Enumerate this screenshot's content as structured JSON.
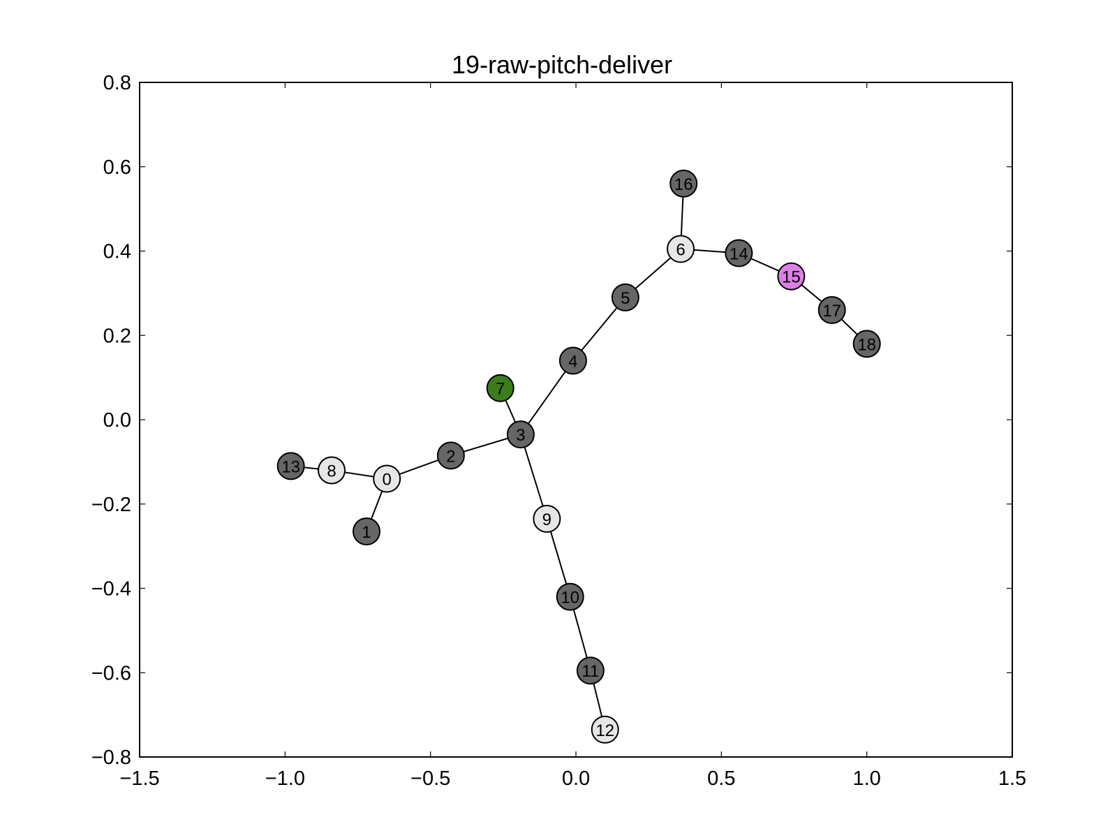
{
  "chart_data": {
    "type": "network",
    "title": "19-raw-pitch-deliver",
    "xlabel": "",
    "ylabel": "",
    "xlim": [
      -1.5,
      1.5
    ],
    "ylim": [
      -0.8,
      0.8
    ],
    "x_ticks": [
      -1.5,
      -1.0,
      -0.5,
      0.0,
      0.5,
      1.0,
      1.5
    ],
    "x_tick_labels": [
      "−1.5",
      "−1.0",
      "−0.5",
      "0.0",
      "0.5",
      "1.0",
      "1.5"
    ],
    "y_ticks": [
      -0.8,
      -0.6,
      -0.4,
      -0.2,
      0.0,
      0.2,
      0.4,
      0.6,
      0.8
    ],
    "y_tick_labels": [
      "−0.8",
      "−0.6",
      "−0.4",
      "−0.2",
      "0.0",
      "0.2",
      "0.4",
      "0.6",
      "0.8"
    ],
    "grid": false,
    "colors": {
      "dark": "#666666",
      "light": "#e6e6e6",
      "green": "#3a7d1a",
      "pink": "#dc7fe6"
    },
    "nodes": [
      {
        "id": "0",
        "x": -0.65,
        "y": -0.14,
        "color": "light"
      },
      {
        "id": "1",
        "x": -0.72,
        "y": -0.265,
        "color": "dark"
      },
      {
        "id": "2",
        "x": -0.43,
        "y": -0.085,
        "color": "dark"
      },
      {
        "id": "3",
        "x": -0.19,
        "y": -0.035,
        "color": "dark"
      },
      {
        "id": "4",
        "x": -0.01,
        "y": 0.14,
        "color": "dark"
      },
      {
        "id": "5",
        "x": 0.17,
        "y": 0.29,
        "color": "dark"
      },
      {
        "id": "6",
        "x": 0.36,
        "y": 0.405,
        "color": "light"
      },
      {
        "id": "7",
        "x": -0.26,
        "y": 0.075,
        "color": "green"
      },
      {
        "id": "8",
        "x": -0.84,
        "y": -0.12,
        "color": "light"
      },
      {
        "id": "9",
        "x": -0.1,
        "y": -0.235,
        "color": "light"
      },
      {
        "id": "10",
        "x": -0.02,
        "y": -0.42,
        "color": "dark"
      },
      {
        "id": "11",
        "x": 0.05,
        "y": -0.595,
        "color": "dark"
      },
      {
        "id": "12",
        "x": 0.1,
        "y": -0.735,
        "color": "light"
      },
      {
        "id": "13",
        "x": -0.98,
        "y": -0.11,
        "color": "dark"
      },
      {
        "id": "14",
        "x": 0.56,
        "y": 0.395,
        "color": "dark"
      },
      {
        "id": "15",
        "x": 0.74,
        "y": 0.34,
        "color": "pink"
      },
      {
        "id": "16",
        "x": 0.37,
        "y": 0.56,
        "color": "dark"
      },
      {
        "id": "17",
        "x": 0.88,
        "y": 0.26,
        "color": "dark"
      },
      {
        "id": "18",
        "x": 1.0,
        "y": 0.18,
        "color": "dark"
      }
    ],
    "edges": [
      [
        "13",
        "8"
      ],
      [
        "8",
        "0"
      ],
      [
        "0",
        "1"
      ],
      [
        "0",
        "2"
      ],
      [
        "2",
        "3"
      ],
      [
        "3",
        "7"
      ],
      [
        "3",
        "4"
      ],
      [
        "4",
        "5"
      ],
      [
        "5",
        "6"
      ],
      [
        "6",
        "16"
      ],
      [
        "6",
        "14"
      ],
      [
        "14",
        "15"
      ],
      [
        "15",
        "17"
      ],
      [
        "17",
        "18"
      ],
      [
        "3",
        "9"
      ],
      [
        "9",
        "10"
      ],
      [
        "10",
        "11"
      ],
      [
        "11",
        "12"
      ]
    ]
  }
}
